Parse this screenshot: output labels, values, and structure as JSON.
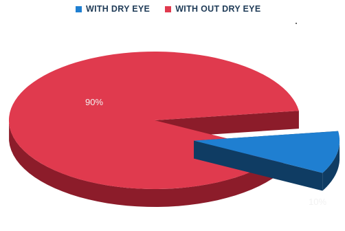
{
  "chart_data": {
    "type": "pie",
    "title": "",
    "slices": [
      {
        "label": "WITH DRY EYE",
        "value": 10,
        "value_label": "10%",
        "color": "#1f7fd1",
        "side_color": "#0f3c63",
        "exploded": true
      },
      {
        "label": "WITH OUT DRY EYE",
        "value": 90,
        "value_label": "90%",
        "color": "#e03a4e",
        "side_color": "#8c1c2a",
        "exploded": false
      }
    ],
    "legend_position": "top",
    "style": "3d-exploded"
  }
}
